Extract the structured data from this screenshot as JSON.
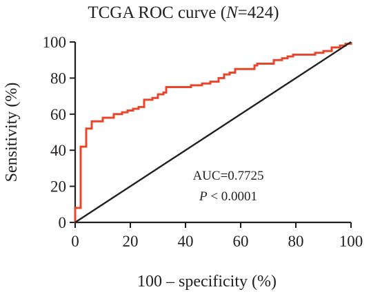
{
  "chart_data": {
    "type": "line",
    "title_prefix": "TCGA ROC curve (",
    "title_var": "N",
    "title_suffix": "=424)",
    "xlabel": "100 – specificity (%)",
    "ylabel": "Sensitivity (%)",
    "xlim": [
      0,
      100
    ],
    "ylim": [
      0,
      100
    ],
    "xticks": [
      0,
      20,
      40,
      60,
      80,
      100
    ],
    "yticks": [
      0,
      20,
      40,
      60,
      80,
      100
    ],
    "grid": false,
    "annotation": {
      "auc": "AUC=0.7725",
      "p_var": "P",
      "p_rest": " < 0.0001"
    },
    "series": [
      {
        "color": "#e8462b",
        "step": true,
        "points": [
          [
            0,
            0
          ],
          [
            0,
            8
          ],
          [
            2,
            8
          ],
          [
            2,
            42
          ],
          [
            4,
            42
          ],
          [
            4,
            52
          ],
          [
            6,
            52
          ],
          [
            6,
            56
          ],
          [
            10,
            56
          ],
          [
            10,
            58
          ],
          [
            14,
            58
          ],
          [
            14,
            60
          ],
          [
            17,
            61
          ],
          [
            19,
            62
          ],
          [
            21,
            63
          ],
          [
            23,
            64
          ],
          [
            25,
            65
          ],
          [
            25,
            68
          ],
          [
            28,
            69
          ],
          [
            30,
            71
          ],
          [
            32,
            72
          ],
          [
            33,
            75
          ],
          [
            38,
            75
          ],
          [
            42,
            76
          ],
          [
            46,
            77
          ],
          [
            49,
            78
          ],
          [
            52,
            80
          ],
          [
            54,
            82
          ],
          [
            56,
            83
          ],
          [
            58,
            85
          ],
          [
            63,
            85
          ],
          [
            65,
            87
          ],
          [
            66,
            88
          ],
          [
            71,
            88
          ],
          [
            72,
            90
          ],
          [
            75,
            91
          ],
          [
            77,
            92
          ],
          [
            79,
            93
          ],
          [
            85,
            93
          ],
          [
            87,
            94
          ],
          [
            90,
            95
          ],
          [
            93,
            95
          ],
          [
            93,
            97
          ],
          [
            96,
            98
          ],
          [
            98,
            99
          ],
          [
            100,
            100
          ]
        ]
      },
      {
        "color": "#231f20",
        "step": false,
        "points": [
          [
            0,
            0
          ],
          [
            100,
            100
          ]
        ]
      }
    ]
  }
}
